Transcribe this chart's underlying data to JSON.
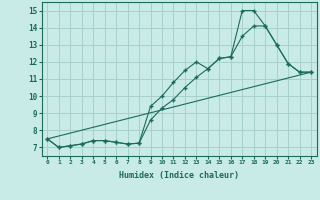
{
  "title": "",
  "xlabel": "Humidex (Indice chaleur)",
  "background_color": "#c8ebe8",
  "grid_color": "#a8d0cc",
  "line_color": "#1a6b5a",
  "xlim": [
    -0.5,
    23.5
  ],
  "ylim": [
    6.5,
    15.5
  ],
  "yticks": [
    7,
    8,
    9,
    10,
    11,
    12,
    13,
    14,
    15
  ],
  "xticks": [
    0,
    1,
    2,
    3,
    4,
    5,
    6,
    7,
    8,
    9,
    10,
    11,
    12,
    13,
    14,
    15,
    16,
    17,
    18,
    19,
    20,
    21,
    22,
    23
  ],
  "series1_x": [
    0,
    1,
    2,
    3,
    4,
    5,
    6,
    7,
    8,
    9,
    10,
    11,
    12,
    13,
    14,
    15,
    16,
    17,
    18,
    19,
    20,
    21,
    22,
    23
  ],
  "series1_y": [
    7.5,
    7.0,
    7.1,
    7.2,
    7.4,
    7.4,
    7.3,
    7.2,
    7.25,
    9.4,
    10.0,
    10.8,
    11.5,
    12.0,
    11.6,
    12.2,
    12.3,
    15.0,
    15.0,
    14.1,
    13.0,
    11.9,
    11.4,
    11.4
  ],
  "series2_x": [
    0,
    1,
    2,
    3,
    4,
    5,
    6,
    7,
    8,
    9,
    10,
    11,
    12,
    13,
    14,
    15,
    16,
    17,
    18,
    19,
    20,
    21,
    22,
    23
  ],
  "series2_y": [
    7.5,
    7.0,
    7.1,
    7.2,
    7.4,
    7.4,
    7.3,
    7.2,
    7.25,
    8.6,
    9.3,
    9.8,
    10.5,
    11.1,
    11.6,
    12.2,
    12.3,
    13.5,
    14.1,
    14.1,
    13.0,
    11.9,
    11.4,
    11.4
  ],
  "series3_x": [
    0,
    23
  ],
  "series3_y": [
    7.5,
    11.4
  ]
}
